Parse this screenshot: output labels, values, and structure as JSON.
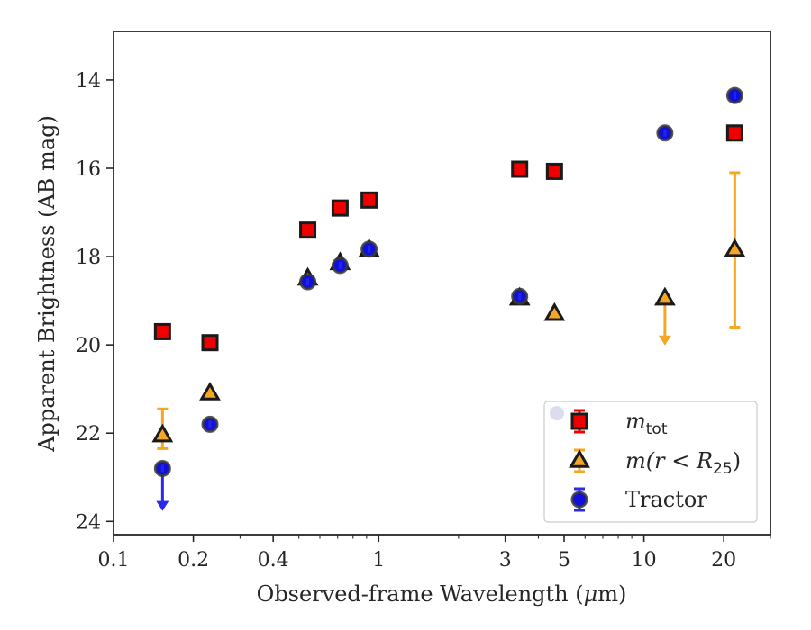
{
  "chart_data": {
    "type": "scatter",
    "xscale": "log",
    "yaxis_inverted": true,
    "xlim": [
      0.1,
      30
    ],
    "ylim": [
      24.3,
      12.9
    ],
    "xlabel": "Observed-frame Wavelength (",
    "xlabel_mu": "μ",
    "xlabel_end": "m)",
    "ylabel": "Apparent Brightness (AB mag)",
    "xticks": [
      {
        "value": 0.1,
        "label": "0.1"
      },
      {
        "value": 0.2,
        "label": "0.2"
      },
      {
        "value": 0.4,
        "label": "0.4"
      },
      {
        "value": 1,
        "label": "1"
      },
      {
        "value": 3,
        "label": "3"
      },
      {
        "value": 5,
        "label": "5"
      },
      {
        "value": 10,
        "label": "10"
      },
      {
        "value": 20,
        "label": "20"
      }
    ],
    "xminor": [
      0.3,
      0.5,
      0.6,
      0.7,
      0.8,
      0.9,
      2,
      4,
      6,
      7,
      8,
      9,
      30
    ],
    "yticks": [
      {
        "value": 14,
        "label": "14"
      },
      {
        "value": 16,
        "label": "16"
      },
      {
        "value": 18,
        "label": "18"
      },
      {
        "value": 20,
        "label": "20"
      },
      {
        "value": 22,
        "label": "22"
      },
      {
        "value": 24,
        "label": "24"
      }
    ],
    "legend_position": "lower-right",
    "legend": [
      {
        "series": "mtot",
        "math_main": "m",
        "math_sub": "tot"
      },
      {
        "series": "m_r25",
        "math_main": "m",
        "math_paren": "(r < R",
        "math_sub": "25",
        "math_close": ")"
      },
      {
        "series": "tractor",
        "text": "Tractor"
      }
    ],
    "series": [
      {
        "id": "mtot",
        "marker": "square",
        "color": "#ee0000",
        "edge": "#1a1a1a",
        "errcolor": "#ee0000",
        "points": [
          {
            "x": 0.153,
            "y": 19.7
          },
          {
            "x": 0.231,
            "y": 19.95
          },
          {
            "x": 0.54,
            "y": 17.4
          },
          {
            "x": 0.715,
            "y": 16.9
          },
          {
            "x": 0.92,
            "y": 16.72
          },
          {
            "x": 3.4,
            "y": 16.02
          },
          {
            "x": 4.6,
            "y": 16.07
          },
          {
            "x": 22,
            "y": 15.2
          }
        ]
      },
      {
        "id": "m_r25",
        "marker": "triangle",
        "color": "#f5a623",
        "edge": "#1a1a1a",
        "errcolor": "#f5a623",
        "points": [
          {
            "x": 0.153,
            "y": 22.05,
            "yerr_low": 21.45,
            "yerr_high": 22.35
          },
          {
            "x": 0.231,
            "y": 21.1
          },
          {
            "x": 0.54,
            "y": 18.5
          },
          {
            "x": 0.715,
            "y": 18.15
          },
          {
            "x": 0.92,
            "y": 17.85
          },
          {
            "x": 3.4,
            "y": 18.95
          },
          {
            "x": 4.6,
            "y": 19.3
          },
          {
            "x": 12,
            "y": 18.95,
            "upper_limit_to": 19.95
          },
          {
            "x": 22,
            "y": 17.85,
            "yerr_low": 16.1,
            "yerr_high": 19.6
          }
        ]
      },
      {
        "id": "tractor",
        "marker": "circle",
        "color": "#1010dd",
        "edge": "#3a3a3a",
        "errcolor": "#2a2aee",
        "points": [
          {
            "x": 0.153,
            "y": 22.8,
            "upper_limit_to": 23.7
          },
          {
            "x": 0.231,
            "y": 21.8
          },
          {
            "x": 0.54,
            "y": 18.57
          },
          {
            "x": 0.715,
            "y": 18.2
          },
          {
            "x": 0.92,
            "y": 17.83
          },
          {
            "x": 3.4,
            "y": 18.9
          },
          {
            "x": 12,
            "y": 15.2
          },
          {
            "x": 22,
            "y": 14.35
          }
        ]
      }
    ]
  }
}
